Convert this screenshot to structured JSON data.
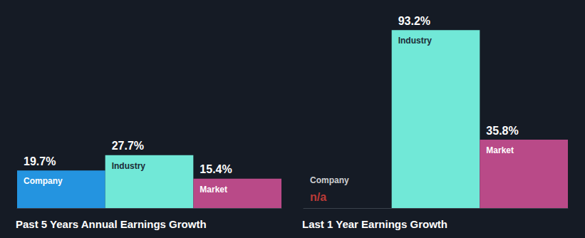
{
  "chart_data": [
    {
      "type": "bar",
      "title": "Past 5 Years Annual Earnings Growth",
      "categories": [
        "Company",
        "Industry",
        "Market"
      ],
      "values": [
        19.7,
        27.7,
        15.4
      ],
      "value_labels": [
        "19.7%",
        "27.7%",
        "15.4%"
      ],
      "colors": [
        "#2494e0",
        "#71e8d7",
        "#b94a88"
      ],
      "ylim": [
        0,
        100
      ],
      "grid": false,
      "data_labels": true,
      "tick_labels": false
    },
    {
      "type": "bar",
      "title": "Last 1 Year Earnings Growth",
      "categories": [
        "Company",
        "Industry",
        "Market"
      ],
      "values": [
        null,
        93.2,
        35.8
      ],
      "value_labels": [
        "n/a",
        "93.2%",
        "35.8%"
      ],
      "colors": [
        "#2494e0",
        "#71e8d7",
        "#b94a88"
      ],
      "ylim": [
        0,
        100
      ],
      "grid": false,
      "data_labels": true,
      "tick_labels": false
    }
  ]
}
